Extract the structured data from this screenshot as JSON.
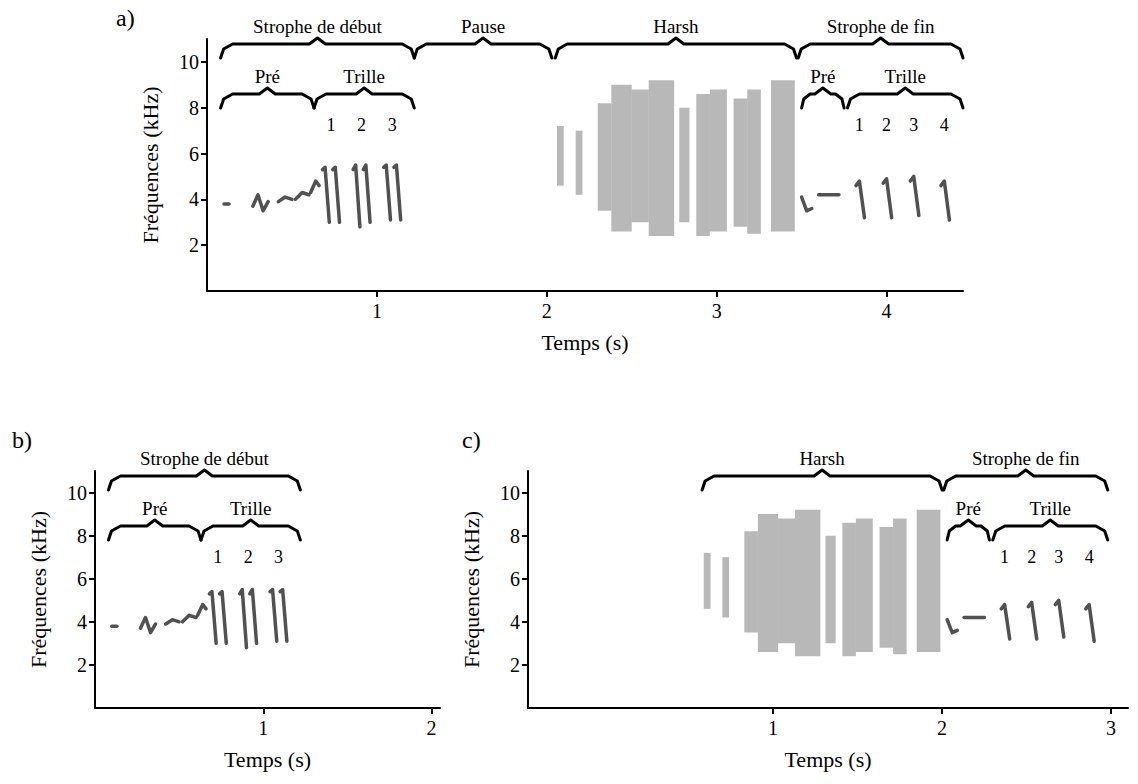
{
  "chart_data": [
    {
      "type": "spectrogram",
      "panel": "a)",
      "x_label": "Temps (s)",
      "y_label": "Fréquences (kHz)",
      "xlim": [
        0,
        4.45
      ],
      "ylim": [
        0,
        11
      ],
      "xticks": [
        1,
        2,
        3,
        4
      ],
      "yticks": [
        2,
        4,
        6,
        8,
        10
      ],
      "brackets": [
        {
          "label": "Strophe de début",
          "start": 0.08,
          "end": 1.22,
          "children": [
            {
              "label": "Pré",
              "start": 0.08,
              "end": 0.63
            },
            {
              "label": "Trille",
              "start": 0.63,
              "end": 1.22,
              "marks": [
                {
                  "label": "1",
                  "t": 0.73
                },
                {
                  "label": "2",
                  "t": 0.91
                },
                {
                  "label": "3",
                  "t": 1.09
                }
              ]
            }
          ]
        },
        {
          "label": "Pause",
          "start": 1.22,
          "end": 2.03
        },
        {
          "label": "Harsh",
          "start": 2.05,
          "end": 3.47
        },
        {
          "label": "Strophe de fin",
          "start": 3.48,
          "end": 4.45,
          "children": [
            {
              "label": "Pré",
              "start": 3.5,
              "end": 3.75
            },
            {
              "label": "Trille",
              "start": 3.77,
              "end": 4.45,
              "marks": [
                {
                  "label": "1",
                  "t": 3.84
                },
                {
                  "label": "2",
                  "t": 4.0
                },
                {
                  "label": "3",
                  "t": 4.16
                },
                {
                  "label": "4",
                  "t": 4.34
                }
              ]
            }
          ]
        }
      ],
      "series": [
        {
          "type": "line",
          "color": "#333333",
          "values": [
            [
              [
                0.1,
                3.8
              ],
              [
                0.13,
                3.8
              ]
            ],
            [
              [
                0.27,
                3.7
              ],
              [
                0.3,
                4.2
              ],
              [
                0.33,
                3.5
              ],
              [
                0.36,
                3.9
              ]
            ],
            [
              [
                0.42,
                3.9
              ],
              [
                0.46,
                4.1
              ],
              [
                0.5,
                4.0
              ]
            ],
            [
              [
                0.52,
                4.0
              ],
              [
                0.56,
                4.3
              ],
              [
                0.6,
                4.2
              ]
            ],
            [
              [
                0.61,
                4.3
              ],
              [
                0.64,
                4.8
              ],
              [
                0.66,
                4.6
              ]
            ],
            [
              [
                0.68,
                5.3
              ],
              [
                0.695,
                5.4
              ],
              [
                0.72,
                3.0
              ]
            ],
            [
              [
                0.74,
                5.3
              ],
              [
                0.755,
                5.4
              ],
              [
                0.78,
                3.0
              ]
            ],
            [
              [
                0.86,
                5.3
              ],
              [
                0.875,
                5.5
              ],
              [
                0.9,
                2.8
              ]
            ],
            [
              [
                0.92,
                5.3
              ],
              [
                0.935,
                5.5
              ],
              [
                0.96,
                3.0
              ]
            ],
            [
              [
                1.04,
                5.4
              ],
              [
                1.055,
                5.5
              ],
              [
                1.08,
                3.1
              ]
            ],
            [
              [
                1.1,
                5.4
              ],
              [
                1.115,
                5.5
              ],
              [
                1.14,
                3.1
              ]
            ],
            [
              [
                3.5,
                4.1
              ],
              [
                3.53,
                3.5
              ],
              [
                3.56,
                3.6
              ]
            ],
            [
              [
                3.6,
                4.2
              ],
              [
                3.72,
                4.2
              ]
            ],
            [
              [
                3.82,
                4.6
              ],
              [
                3.84,
                4.8
              ],
              [
                3.87,
                3.2
              ]
            ],
            [
              [
                3.98,
                4.7
              ],
              [
                4.0,
                4.9
              ],
              [
                4.03,
                3.2
              ]
            ],
            [
              [
                4.14,
                4.8
              ],
              [
                4.16,
                5.0
              ],
              [
                4.19,
                3.3
              ]
            ],
            [
              [
                4.32,
                4.6
              ],
              [
                4.34,
                4.8
              ],
              [
                4.37,
                3.1
              ]
            ]
          ]
        },
        {
          "type": "area",
          "color": "#555555",
          "values": [
            [
              2.06,
              4.6,
              2.1,
              7.2
            ],
            [
              2.17,
              4.2,
              2.21,
              7.0
            ],
            [
              2.3,
              3.5,
              2.38,
              8.2
            ],
            [
              2.38,
              2.6,
              2.5,
              9.0
            ],
            [
              2.5,
              3.0,
              2.6,
              8.8
            ],
            [
              2.6,
              2.4,
              2.75,
              9.2
            ],
            [
              2.78,
              3.0,
              2.84,
              8.0
            ],
            [
              2.88,
              2.4,
              2.96,
              8.6
            ],
            [
              2.96,
              2.6,
              3.06,
              8.8
            ],
            [
              3.1,
              2.8,
              3.18,
              8.4
            ],
            [
              3.18,
              2.5,
              3.26,
              8.8
            ],
            [
              3.32,
              2.6,
              3.46,
              9.2
            ]
          ]
        }
      ]
    },
    {
      "type": "spectrogram",
      "panel": "b)",
      "x_label": "Temps (s)",
      "y_label": "Fréquences (kHz)",
      "xlim": [
        0,
        2.05
      ],
      "ylim": [
        0,
        11
      ],
      "xticks": [
        1,
        2
      ],
      "yticks": [
        2,
        4,
        6,
        8,
        10
      ],
      "brackets": [
        {
          "label": "Strophe de début",
          "start": 0.08,
          "end": 1.22,
          "children": [
            {
              "label": "Pré",
              "start": 0.08,
              "end": 0.63
            },
            {
              "label": "Trille",
              "start": 0.63,
              "end": 1.22,
              "marks": [
                {
                  "label": "1",
                  "t": 0.73
                },
                {
                  "label": "2",
                  "t": 0.91
                },
                {
                  "label": "3",
                  "t": 1.09
                }
              ]
            }
          ]
        }
      ],
      "series": [
        {
          "type": "line",
          "color": "#333333",
          "values": [
            [
              [
                0.1,
                3.8
              ],
              [
                0.13,
                3.8
              ]
            ],
            [
              [
                0.27,
                3.7
              ],
              [
                0.3,
                4.2
              ],
              [
                0.33,
                3.5
              ],
              [
                0.36,
                3.9
              ]
            ],
            [
              [
                0.42,
                3.9
              ],
              [
                0.46,
                4.1
              ],
              [
                0.5,
                4.0
              ]
            ],
            [
              [
                0.52,
                4.0
              ],
              [
                0.56,
                4.3
              ],
              [
                0.6,
                4.2
              ]
            ],
            [
              [
                0.61,
                4.3
              ],
              [
                0.64,
                4.8
              ],
              [
                0.66,
                4.6
              ]
            ],
            [
              [
                0.68,
                5.3
              ],
              [
                0.695,
                5.4
              ],
              [
                0.72,
                3.0
              ]
            ],
            [
              [
                0.74,
                5.3
              ],
              [
                0.755,
                5.4
              ],
              [
                0.78,
                3.0
              ]
            ],
            [
              [
                0.86,
                5.3
              ],
              [
                0.875,
                5.5
              ],
              [
                0.9,
                2.8
              ]
            ],
            [
              [
                0.92,
                5.3
              ],
              [
                0.935,
                5.5
              ],
              [
                0.96,
                3.0
              ]
            ],
            [
              [
                1.04,
                5.4
              ],
              [
                1.055,
                5.5
              ],
              [
                1.08,
                3.1
              ]
            ],
            [
              [
                1.1,
                5.4
              ],
              [
                1.115,
                5.5
              ],
              [
                1.14,
                3.1
              ]
            ]
          ]
        }
      ]
    },
    {
      "type": "spectrogram",
      "panel": "c)",
      "x_label": "Temps (s)",
      "y_label": "Fréquences (kHz)",
      "xlim": [
        -0.45,
        3.1
      ],
      "ylim": [
        0,
        11
      ],
      "xticks": [
        1,
        2,
        3
      ],
      "yticks": [
        2,
        4,
        6,
        8,
        10
      ],
      "brackets": [
        {
          "label": "Harsh",
          "start": 0.58,
          "end": 2.0
        },
        {
          "label": "Strophe de fin",
          "start": 2.01,
          "end": 2.98,
          "children": [
            {
              "label": "Pré",
              "start": 2.03,
              "end": 2.28
            },
            {
              "label": "Trille",
              "start": 2.3,
              "end": 2.98,
              "marks": [
                {
                  "label": "1",
                  "t": 2.37
                },
                {
                  "label": "2",
                  "t": 2.53
                },
                {
                  "label": "3",
                  "t": 2.69
                },
                {
                  "label": "4",
                  "t": 2.87
                }
              ]
            }
          ]
        }
      ],
      "series": [
        {
          "type": "line",
          "color": "#333333",
          "values": [
            [
              [
                2.03,
                4.1
              ],
              [
                2.06,
                3.5
              ],
              [
                2.09,
                3.6
              ]
            ],
            [
              [
                2.13,
                4.2
              ],
              [
                2.25,
                4.2
              ]
            ],
            [
              [
                2.35,
                4.6
              ],
              [
                2.37,
                4.8
              ],
              [
                2.4,
                3.2
              ]
            ],
            [
              [
                2.51,
                4.7
              ],
              [
                2.53,
                4.9
              ],
              [
                2.56,
                3.2
              ]
            ],
            [
              [
                2.67,
                4.8
              ],
              [
                2.69,
                5.0
              ],
              [
                2.72,
                3.3
              ]
            ],
            [
              [
                2.85,
                4.6
              ],
              [
                2.87,
                4.8
              ],
              [
                2.9,
                3.1
              ]
            ]
          ]
        },
        {
          "type": "area",
          "color": "#555555",
          "values": [
            [
              0.59,
              4.6,
              0.63,
              7.2
            ],
            [
              0.7,
              4.2,
              0.74,
              7.0
            ],
            [
              0.83,
              3.5,
              0.91,
              8.2
            ],
            [
              0.91,
              2.6,
              1.03,
              9.0
            ],
            [
              1.03,
              3.0,
              1.13,
              8.8
            ],
            [
              1.13,
              2.4,
              1.28,
              9.2
            ],
            [
              1.31,
              3.0,
              1.37,
              8.0
            ],
            [
              1.41,
              2.4,
              1.49,
              8.6
            ],
            [
              1.49,
              2.6,
              1.59,
              8.8
            ],
            [
              1.63,
              2.8,
              1.71,
              8.4
            ],
            [
              1.71,
              2.5,
              1.79,
              8.8
            ],
            [
              1.85,
              2.6,
              1.99,
              9.2
            ]
          ]
        }
      ]
    }
  ]
}
